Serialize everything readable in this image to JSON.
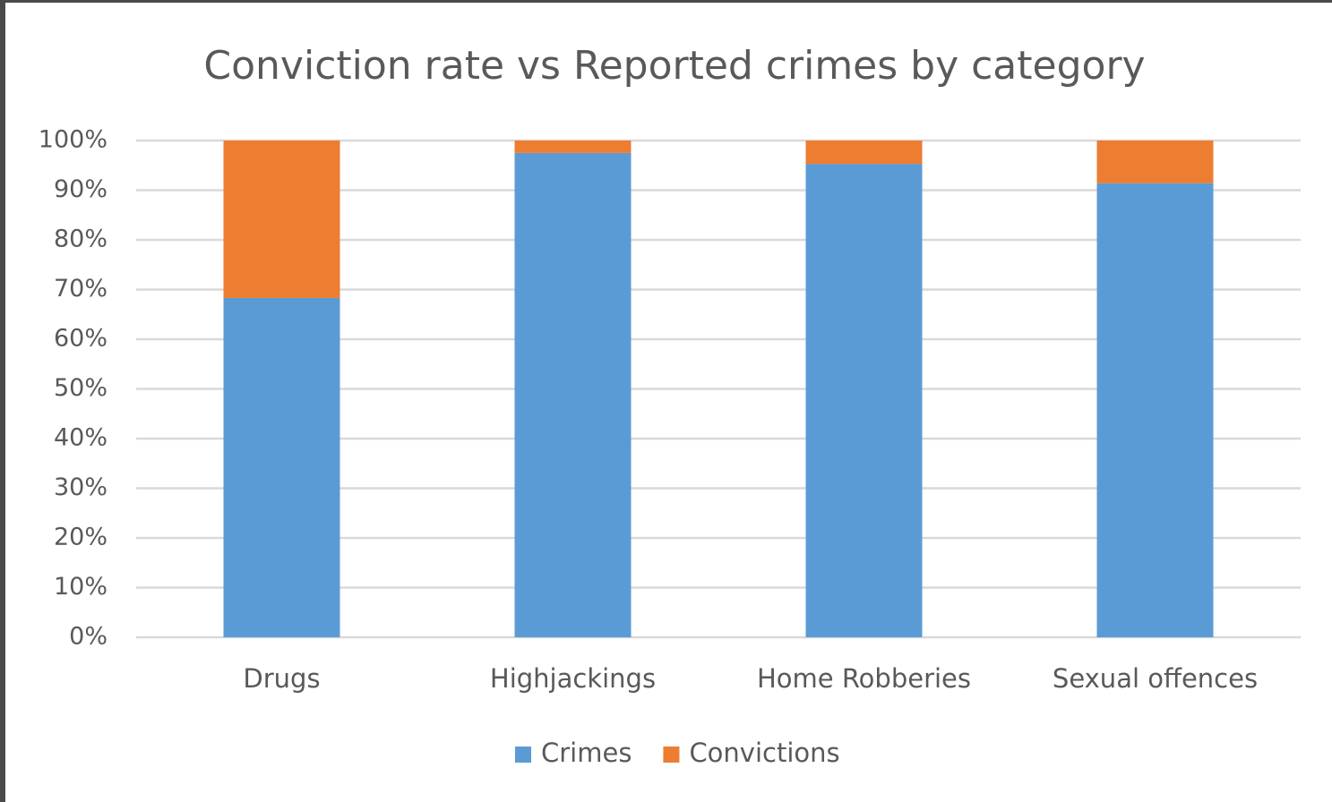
{
  "chart_data": {
    "type": "stacked_bar",
    "title": "Conviction rate vs Reported crimes by category",
    "categories": [
      "Drugs",
      "Highjackings",
      "Home Robberies",
      "Sexual offences"
    ],
    "series": [
      {
        "name": "Crimes",
        "color": "#5b9bd5",
        "values": [
          68.3,
          97.5,
          95.3,
          91.4
        ]
      },
      {
        "name": "Convictions",
        "color": "#ed7d31",
        "values": [
          31.7,
          2.5,
          4.7,
          8.6
        ]
      }
    ],
    "ylim": [
      0,
      100
    ],
    "yticks": [
      {
        "value": 0,
        "label": "0%"
      },
      {
        "value": 10,
        "label": "10%"
      },
      {
        "value": 20,
        "label": "20%"
      },
      {
        "value": 30,
        "label": "30%"
      },
      {
        "value": 40,
        "label": "40%"
      },
      {
        "value": 50,
        "label": "50%"
      },
      {
        "value": 60,
        "label": "60%"
      },
      {
        "value": 70,
        "label": "70%"
      },
      {
        "value": 80,
        "label": "80%"
      },
      {
        "value": 90,
        "label": "90%"
      },
      {
        "value": 100,
        "label": "100%"
      }
    ],
    "grid": true,
    "legend": "bottom"
  }
}
